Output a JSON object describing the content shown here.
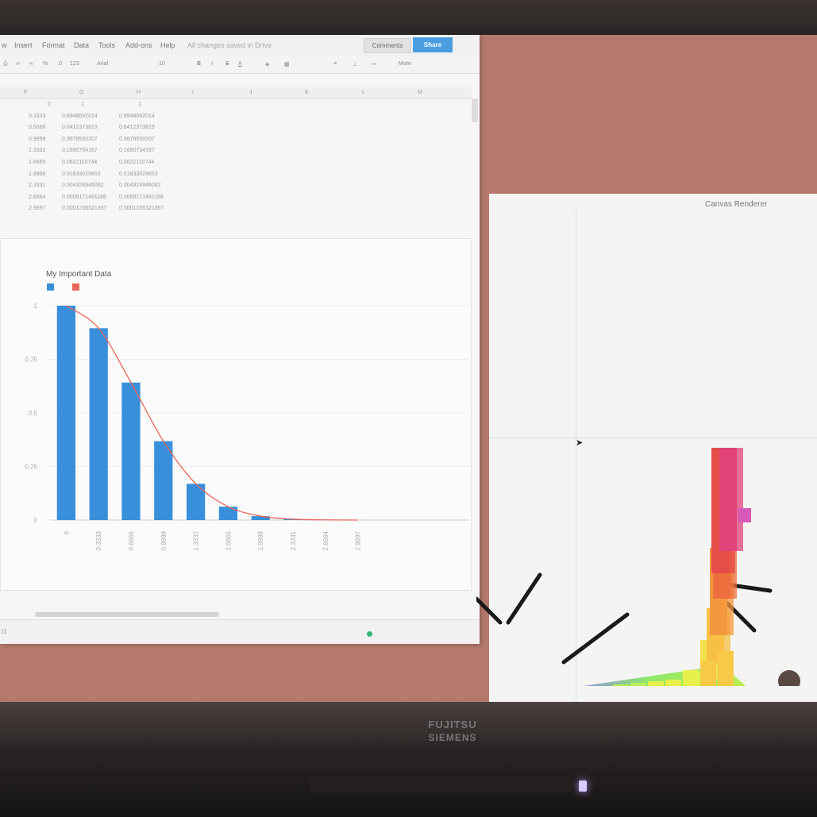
{
  "menu": {
    "items": [
      "w",
      "Insert",
      "Format",
      "Data",
      "Tools",
      "Add-ons",
      "Help"
    ],
    "status": "All changes saved in Drive",
    "comments": "Comments",
    "share": "Share"
  },
  "toolbar": {
    "zoom": "123",
    "font": "Arial",
    "size": "10",
    "bold": "B",
    "italic": "I",
    "strike": "S",
    "more": "More"
  },
  "columns": [
    "F",
    "G",
    "H",
    "I",
    "J",
    "K",
    "L",
    "M"
  ],
  "table": [
    [
      "0",
      "1",
      "1"
    ],
    [
      "0.3333",
      "0.8948692014",
      "0.8948692014"
    ],
    [
      "0.6666",
      "0.6412373819",
      "0.6412373819"
    ],
    [
      "0.9999",
      "0.3679530207",
      "0.3679530207"
    ],
    [
      "1.3332",
      "0.1690734167",
      "0.1690734167"
    ],
    [
      "1.6665",
      "0.0622110744",
      "0.0622110744"
    ],
    [
      "1.9998",
      "0.01833029653",
      "0.01833029653"
    ],
    [
      "2.3331",
      "0.004324946062",
      "0.004324946062"
    ],
    [
      "2.6664",
      "0.0008171491188",
      "0.0008171491188"
    ],
    [
      "2.9997",
      "0.0001236321367",
      "0.0001236321367"
    ]
  ],
  "chart_data": {
    "type": "bar",
    "title": "My Important Data",
    "categories": [
      "0",
      "0.3333",
      "0.6666",
      "0.9999",
      "1.3332",
      "1.6665",
      "1.9998",
      "2.3331",
      "2.6664",
      "2.9997"
    ],
    "series": [
      {
        "values": [
          1,
          0.8948692014,
          0.6412373819,
          0.3679530207,
          0.1690734167,
          0.0622110744,
          0.01833029653,
          0.004324946062,
          0.0008171491188,
          0.0001236321367
        ],
        "color": "#3a8fdb",
        "mark": "bar"
      },
      {
        "values": [
          1,
          0.8948692014,
          0.6412373819,
          0.3679530207,
          0.1690734167,
          0.0622110744,
          0.01833029653,
          0.004324946062,
          0.0008171491188,
          0.0001236321367
        ],
        "color": "#e8675a",
        "mark": "line"
      }
    ],
    "yticks": [
      "0",
      "0.25",
      "0.5",
      "0.75",
      "1"
    ],
    "ylim": [
      0,
      1
    ],
    "legend": "top-left",
    "grid": true
  },
  "sheet_tab": "t1",
  "renderer": {
    "title": "Canvas   Renderer"
  },
  "monitor": {
    "brand": "FUJITSU",
    "brand_sub": "SIEMENS"
  }
}
